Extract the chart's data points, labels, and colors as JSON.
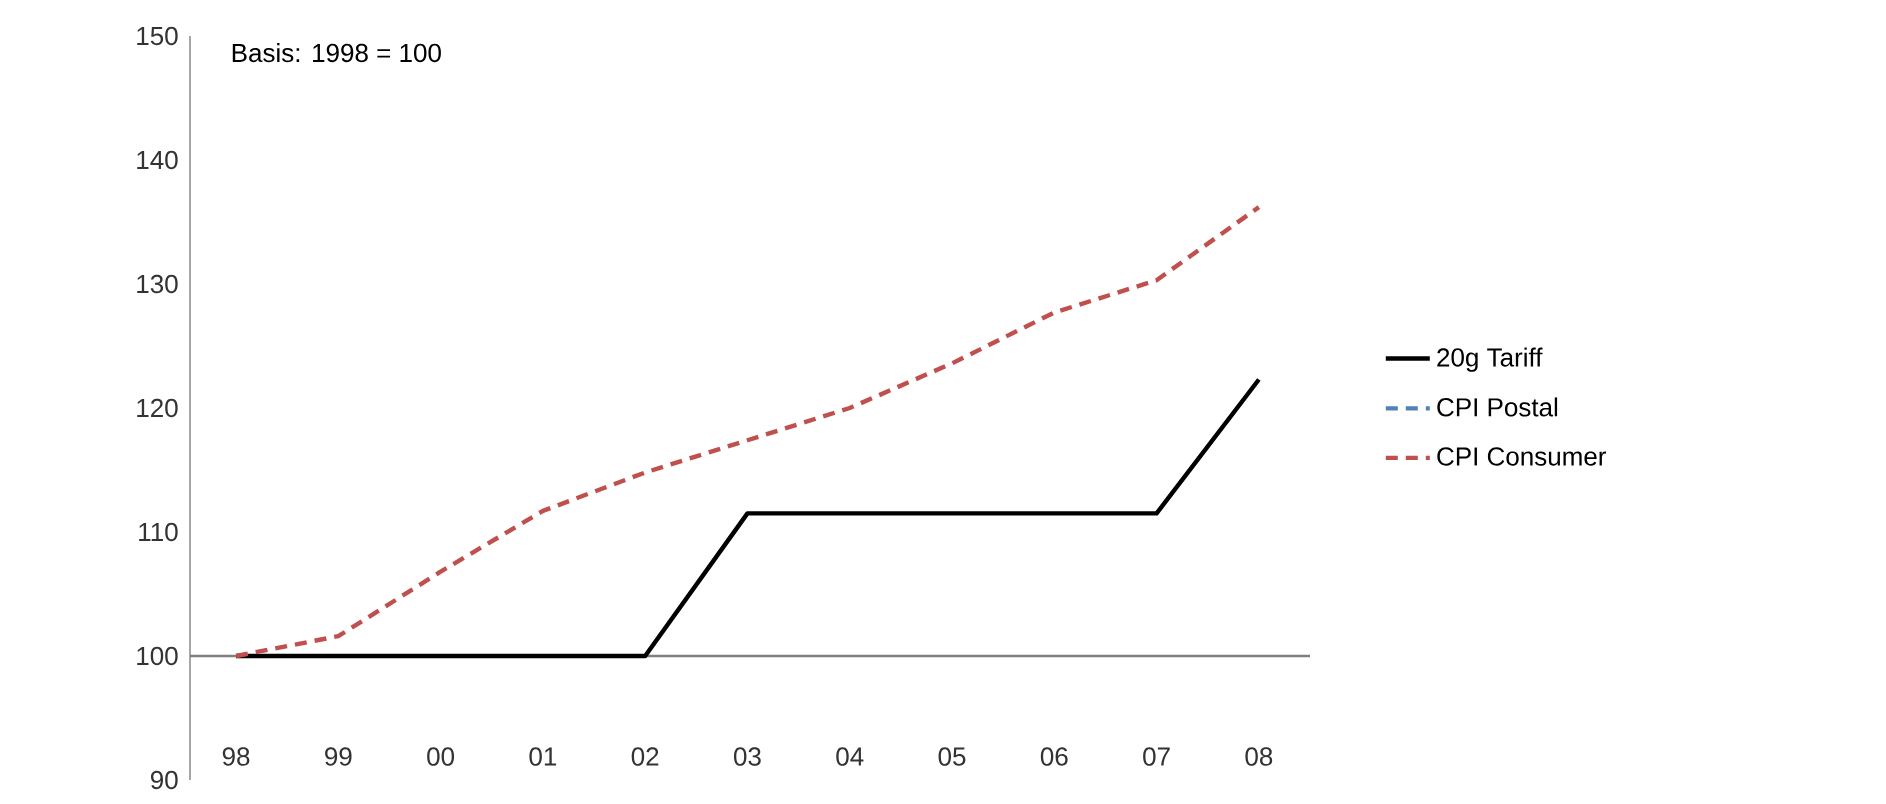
{
  "chart_data": {
    "type": "line",
    "annotations": [
      "Basis: 1998 = 100"
    ],
    "categories": [
      "98",
      "99",
      "00",
      "01",
      "02",
      "03",
      "04",
      "05",
      "06",
      "07",
      "08"
    ],
    "series": [
      {
        "name": "20g Tariff",
        "color": "#000000",
        "line_style": "solid",
        "values": [
          100,
          100,
          100,
          100,
          100,
          111.5,
          111.5,
          111.5,
          111.5,
          111.5,
          122.3
        ]
      },
      {
        "name": "CPI Postal",
        "color": "#4f81bd",
        "line_style": "dashed",
        "values": [
          null,
          null,
          null,
          null,
          null,
          null,
          null,
          null,
          null,
          null,
          null
        ]
      },
      {
        "name": "CPI Consumer",
        "color": "#c0504d",
        "line_style": "dashed",
        "values": [
          100,
          101.6,
          106.8,
          111.7,
          114.8,
          117.4,
          120,
          123.6,
          127.7,
          130.3,
          136.2
        ]
      }
    ],
    "ref_lines": [
      {
        "axis": "y",
        "value": 100,
        "color": "#808080"
      }
    ],
    "ylim": [
      90,
      150
    ],
    "yticks": [
      90,
      100,
      110,
      120,
      130,
      140,
      150
    ],
    "grid": false,
    "legend": "right",
    "marker": "none"
  }
}
